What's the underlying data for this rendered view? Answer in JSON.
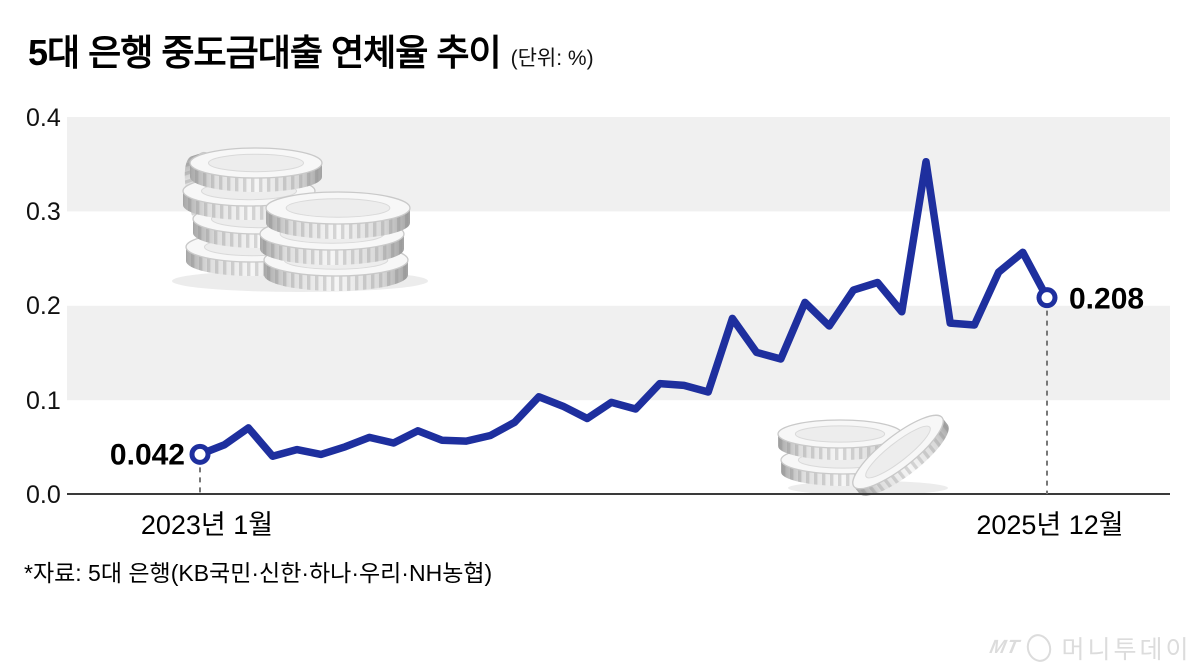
{
  "header": {
    "title": "5대 은행 중도금대출 연체율 추이",
    "unit": "(단위: %)"
  },
  "chart_data": {
    "type": "line",
    "title": "5대 은행 중도금대출 연체율 추이",
    "unit": "%",
    "x": [
      "2023-01",
      "2023-02",
      "2023-03",
      "2023-04",
      "2023-05",
      "2023-06",
      "2023-07",
      "2023-08",
      "2023-09",
      "2023-10",
      "2023-11",
      "2023-12",
      "2024-01",
      "2024-02",
      "2024-03",
      "2024-04",
      "2024-05",
      "2024-06",
      "2024-07",
      "2024-08",
      "2024-09",
      "2024-10",
      "2024-11",
      "2024-12",
      "2025-01",
      "2025-02",
      "2025-03",
      "2025-04",
      "2025-05",
      "2025-06",
      "2025-07",
      "2025-08",
      "2025-09",
      "2025-10",
      "2025-11",
      "2025-12"
    ],
    "values": [
      0.042,
      0.052,
      0.07,
      0.04,
      0.047,
      0.042,
      0.05,
      0.06,
      0.054,
      0.067,
      0.057,
      0.056,
      0.062,
      0.076,
      0.103,
      0.093,
      0.08,
      0.097,
      0.09,
      0.117,
      0.115,
      0.108,
      0.186,
      0.15,
      0.143,
      0.203,
      0.178,
      0.216,
      0.224,
      0.193,
      0.352,
      0.181,
      0.179,
      0.235,
      0.256,
      0.208
    ],
    "ylim": [
      0.0,
      0.4
    ],
    "yticks": [
      "0.4",
      "0.3",
      "0.2",
      "0.1",
      "0.0"
    ],
    "x_start_label": "2023년 1월",
    "x_end_label": "2025년 12월",
    "start_annotation": "0.042",
    "end_annotation": "0.208",
    "line_color": "#1e2f9e",
    "band_color": "#f0f0f0",
    "grid": "alternating horizontal bands",
    "legend_position": "none"
  },
  "footer": {
    "source": "*자료: 5대 은행(KB국민·신한·하나·우리·NH농협)"
  },
  "watermark": {
    "mt": "MT",
    "name": "머니투데이"
  }
}
